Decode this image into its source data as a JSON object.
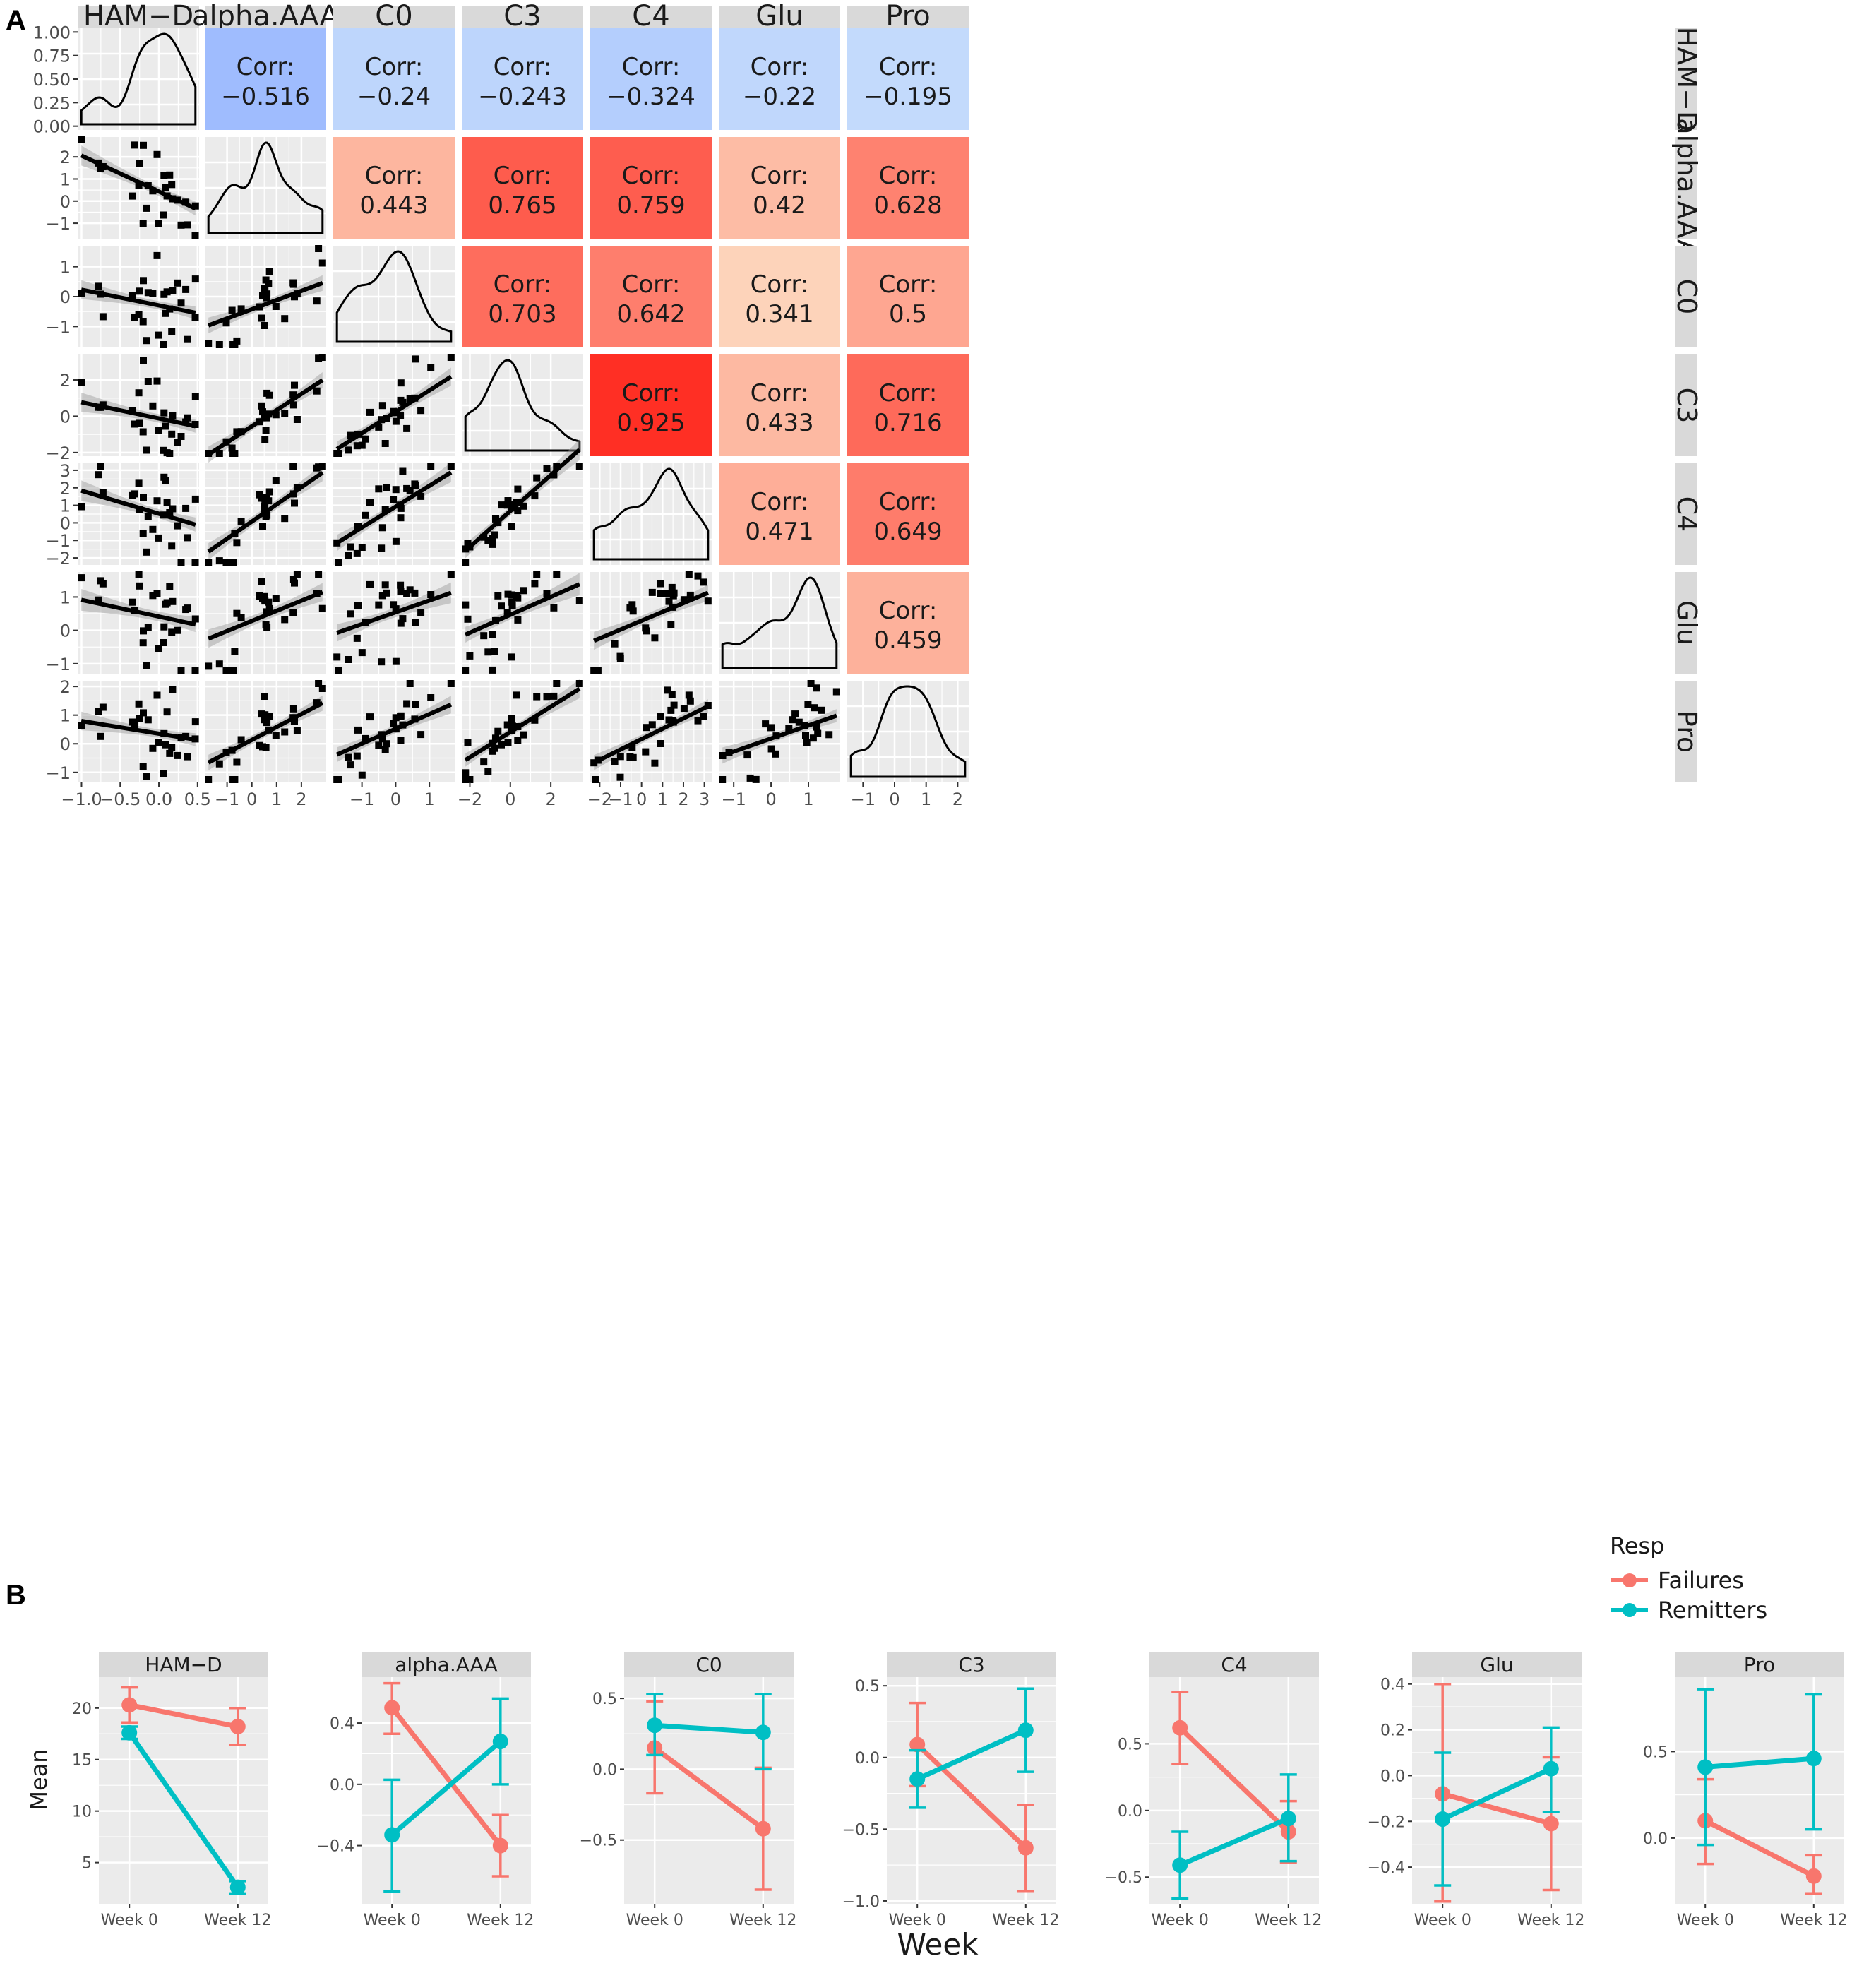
{
  "colors": {
    "panel_bg": "#ebebeb",
    "grid": "#ffffff",
    "strip_bg": "#d9d9d9",
    "failures": "#f8766d",
    "remitters": "#00bfc4",
    "ribbon": "#999999",
    "points": "#000000",
    "text": "#1a1a1a"
  },
  "panel_labels": {
    "a": "A",
    "b": "B"
  },
  "corr_label": "Corr:",
  "chart_data": [
    {
      "type": "scatter-matrix",
      "title": "A",
      "variables": [
        "HAM−D",
        "alpha.AAA",
        "C0",
        "C3",
        "C4",
        "Glu",
        "Pro"
      ],
      "correlations": [
        {
          "row": "HAM−D",
          "col": "alpha.AAA",
          "value": "−0.516",
          "r": -0.516
        },
        {
          "row": "HAM−D",
          "col": "C0",
          "value": "−0.24",
          "r": -0.24
        },
        {
          "row": "HAM−D",
          "col": "C3",
          "value": "−0.243",
          "r": -0.243
        },
        {
          "row": "HAM−D",
          "col": "C4",
          "value": "−0.324",
          "r": -0.324
        },
        {
          "row": "HAM−D",
          "col": "Glu",
          "value": "−0.22",
          "r": -0.22
        },
        {
          "row": "HAM−D",
          "col": "Pro",
          "value": "−0.195",
          "r": -0.195
        },
        {
          "row": "alpha.AAA",
          "col": "C0",
          "value": "0.443",
          "r": 0.443
        },
        {
          "row": "alpha.AAA",
          "col": "C3",
          "value": "0.765",
          "r": 0.765
        },
        {
          "row": "alpha.AAA",
          "col": "C4",
          "value": "0.759",
          "r": 0.759
        },
        {
          "row": "alpha.AAA",
          "col": "Glu",
          "value": "0.42",
          "r": 0.42
        },
        {
          "row": "alpha.AAA",
          "col": "Pro",
          "value": "0.628",
          "r": 0.628
        },
        {
          "row": "C0",
          "col": "C3",
          "value": "0.703",
          "r": 0.703
        },
        {
          "row": "C0",
          "col": "C4",
          "value": "0.642",
          "r": 0.642
        },
        {
          "row": "C0",
          "col": "Glu",
          "value": "0.341",
          "r": 0.341
        },
        {
          "row": "C0",
          "col": "Pro",
          "value": "0.5",
          "r": 0.5
        },
        {
          "row": "C3",
          "col": "C4",
          "value": "0.925",
          "r": 0.925
        },
        {
          "row": "C3",
          "col": "Glu",
          "value": "0.433",
          "r": 0.433
        },
        {
          "row": "C3",
          "col": "Pro",
          "value": "0.716",
          "r": 0.716
        },
        {
          "row": "C4",
          "col": "Glu",
          "value": "0.471",
          "r": 0.471
        },
        {
          "row": "C4",
          "col": "Pro",
          "value": "0.649",
          "r": 0.649
        },
        {
          "row": "Glu",
          "col": "Pro",
          "value": "0.459",
          "r": 0.459
        }
      ],
      "row_axes": [
        {
          "var": "HAM−D",
          "range": [
            -0.04,
            1.04
          ],
          "ticks": [
            0,
            0.25,
            0.5,
            0.75,
            1
          ],
          "tick_labels": [
            "0.00",
            "0.25",
            "0.50",
            "0.75",
            "1.00"
          ]
        },
        {
          "var": "alpha.AAA",
          "range": [
            -1.7,
            2.9
          ],
          "ticks": [
            -1,
            0,
            1,
            2
          ],
          "tick_labels": [
            "−1",
            "0",
            "1",
            "2"
          ]
        },
        {
          "var": "C0",
          "range": [
            -1.7,
            1.7
          ],
          "ticks": [
            -1,
            0,
            1
          ],
          "tick_labels": [
            "−1",
            "0",
            "1"
          ]
        },
        {
          "var": "C3",
          "range": [
            -2.2,
            3.4
          ],
          "ticks": [
            -2,
            0,
            2
          ],
          "tick_labels": [
            "−2",
            "0",
            "2"
          ]
        },
        {
          "var": "C4",
          "range": [
            -2.4,
            3.4
          ],
          "ticks": [
            -2,
            -1,
            0,
            1,
            2,
            3
          ],
          "tick_labels": [
            "−2",
            "−1",
            "0",
            "1",
            "2",
            "3"
          ]
        },
        {
          "var": "Glu",
          "range": [
            -1.3,
            1.75
          ],
          "ticks": [
            -1,
            0,
            1
          ],
          "tick_labels": [
            "−1",
            "0",
            "1"
          ]
        },
        {
          "var": "Pro",
          "range": [
            -1.35,
            2.2
          ],
          "ticks": [
            -1,
            0,
            1,
            2
          ],
          "tick_labels": [
            "−1",
            "0",
            "1",
            "2"
          ]
        }
      ],
      "col_axes": [
        {
          "var": "HAM−D",
          "range": [
            -1.05,
            0.52
          ],
          "ticks": [
            -1,
            -0.5,
            0,
            0.5
          ],
          "tick_labels": [
            "−1.0",
            "−0.5",
            "0.0",
            "0.5"
          ]
        },
        {
          "var": "alpha.AAA",
          "range": [
            -1.9,
            3.0
          ],
          "ticks": [
            -1,
            0,
            1,
            2
          ],
          "tick_labels": [
            "−1",
            "0",
            "1",
            "2"
          ]
        },
        {
          "var": "C0",
          "range": [
            -1.85,
            1.75
          ],
          "ticks": [
            -1,
            0,
            1
          ],
          "tick_labels": [
            "−1",
            "0",
            "1"
          ]
        },
        {
          "var": "C3",
          "range": [
            -2.4,
            3.6
          ],
          "ticks": [
            -2,
            0,
            2
          ],
          "tick_labels": [
            "−2",
            "0",
            "2"
          ]
        },
        {
          "var": "C4",
          "range": [
            -2.45,
            3.35
          ],
          "ticks": [
            -2,
            -1,
            0,
            1,
            2,
            3
          ],
          "tick_labels": [
            "−2",
            "−1",
            "0",
            "1",
            "2",
            "3"
          ]
        },
        {
          "var": "Glu",
          "range": [
            -1.4,
            1.85
          ],
          "ticks": [
            -1,
            0,
            1
          ],
          "tick_labels": [
            "−1",
            "0",
            "1"
          ]
        },
        {
          "var": "Pro",
          "range": [
            -1.5,
            2.35
          ],
          "ticks": [
            -1,
            0,
            1,
            2
          ],
          "tick_labels": [
            "−1",
            "0",
            "1",
            "2"
          ]
        }
      ]
    },
    {
      "type": "line",
      "title": "B",
      "xlabel": "Week",
      "ylabel": "Mean",
      "categories": [
        "Week 0",
        "Week 12"
      ],
      "legend": {
        "title": "Resp",
        "entries": [
          "Failures",
          "Remitters"
        ],
        "position": "top-right"
      },
      "facets": [
        {
          "name": "HAM−D",
          "ylim": [
            1,
            23
          ],
          "yticks": [
            5,
            10,
            15,
            20
          ],
          "ytick_labels": [
            "5",
            "10",
            "15",
            "20"
          ],
          "series": [
            {
              "name": "Failures",
              "values": [
                20.3,
                18.2
              ],
              "lower": [
                18.6,
                16.4
              ],
              "upper": [
                22.0,
                20.0
              ]
            },
            {
              "name": "Remitters",
              "values": [
                17.6,
                2.6
              ],
              "lower": [
                17.0,
                2.0
              ],
              "upper": [
                18.2,
                3.2
              ]
            }
          ]
        },
        {
          "name": "alpha.AAA",
          "ylim": [
            -0.78,
            0.7
          ],
          "yticks": [
            -0.4,
            0,
            0.4
          ],
          "ytick_labels": [
            "−0.4",
            "0.0",
            "0.4"
          ],
          "series": [
            {
              "name": "Failures",
              "values": [
                0.5,
                -0.4
              ],
              "lower": [
                0.33,
                -0.6
              ],
              "upper": [
                0.66,
                -0.2
              ]
            },
            {
              "name": "Remitters",
              "values": [
                -0.33,
                0.28
              ],
              "lower": [
                -0.7,
                0.0
              ],
              "upper": [
                0.03,
                0.56
              ]
            }
          ]
        },
        {
          "name": "C0",
          "ylim": [
            -0.95,
            0.65
          ],
          "yticks": [
            -0.5,
            0,
            0.5
          ],
          "ytick_labels": [
            "−0.5",
            "0.0",
            "0.5"
          ],
          "series": [
            {
              "name": "Failures",
              "values": [
                0.15,
                -0.42
              ],
              "lower": [
                -0.17,
                -0.85
              ],
              "upper": [
                0.48,
                0.01
              ]
            },
            {
              "name": "Remitters",
              "values": [
                0.31,
                0.26
              ],
              "lower": [
                0.1,
                0.0
              ],
              "upper": [
                0.53,
                0.53
              ]
            }
          ]
        },
        {
          "name": "C3",
          "ylim": [
            -1.02,
            0.56
          ],
          "yticks": [
            -1,
            -0.5,
            0,
            0.5
          ],
          "ytick_labels": [
            "−1.0",
            "−0.5",
            "0.0",
            "0.5"
          ],
          "series": [
            {
              "name": "Failures",
              "values": [
                0.09,
                -0.63
              ],
              "lower": [
                -0.2,
                -0.93
              ],
              "upper": [
                0.38,
                -0.33
              ]
            },
            {
              "name": "Remitters",
              "values": [
                -0.15,
                0.19
              ],
              "lower": [
                -0.35,
                -0.1
              ],
              "upper": [
                0.05,
                0.48
              ]
            }
          ]
        },
        {
          "name": "C4",
          "ylim": [
            -0.7,
            1.0
          ],
          "yticks": [
            -0.5,
            0,
            0.5
          ],
          "ytick_labels": [
            "−0.5",
            "0.0",
            "0.5"
          ],
          "series": [
            {
              "name": "Failures",
              "values": [
                0.62,
                -0.16
              ],
              "lower": [
                0.35,
                -0.39
              ],
              "upper": [
                0.89,
                0.07
              ]
            },
            {
              "name": "Remitters",
              "values": [
                -0.41,
                -0.06
              ],
              "lower": [
                -0.66,
                -0.38
              ],
              "upper": [
                -0.16,
                0.27
              ]
            }
          ]
        },
        {
          "name": "Glu",
          "ylim": [
            -0.56,
            0.43
          ],
          "yticks": [
            -0.4,
            -0.2,
            0,
            0.2,
            0.4
          ],
          "ytick_labels": [
            "−0.4",
            "−0.2",
            "0.0",
            "0.2",
            "0.4"
          ],
          "series": [
            {
              "name": "Failures",
              "values": [
                -0.08,
                -0.21
              ],
              "lower": [
                -0.55,
                -0.5
              ],
              "upper": [
                0.4,
                0.08
              ]
            },
            {
              "name": "Remitters",
              "values": [
                -0.19,
                0.03
              ],
              "lower": [
                -0.48,
                -0.16
              ],
              "upper": [
                0.1,
                0.21
              ]
            }
          ]
        },
        {
          "name": "Pro",
          "ylim": [
            -0.38,
            0.93
          ],
          "yticks": [
            0,
            0.5
          ],
          "ytick_labels": [
            "0.0",
            "0.5"
          ],
          "series": [
            {
              "name": "Failures",
              "values": [
                0.1,
                -0.22
              ],
              "lower": [
                -0.15,
                -0.32
              ],
              "upper": [
                0.34,
                -0.1
              ]
            },
            {
              "name": "Remitters",
              "values": [
                0.41,
                0.46
              ],
              "lower": [
                -0.04,
                0.05
              ],
              "upper": [
                0.86,
                0.83
              ]
            }
          ]
        }
      ]
    }
  ]
}
